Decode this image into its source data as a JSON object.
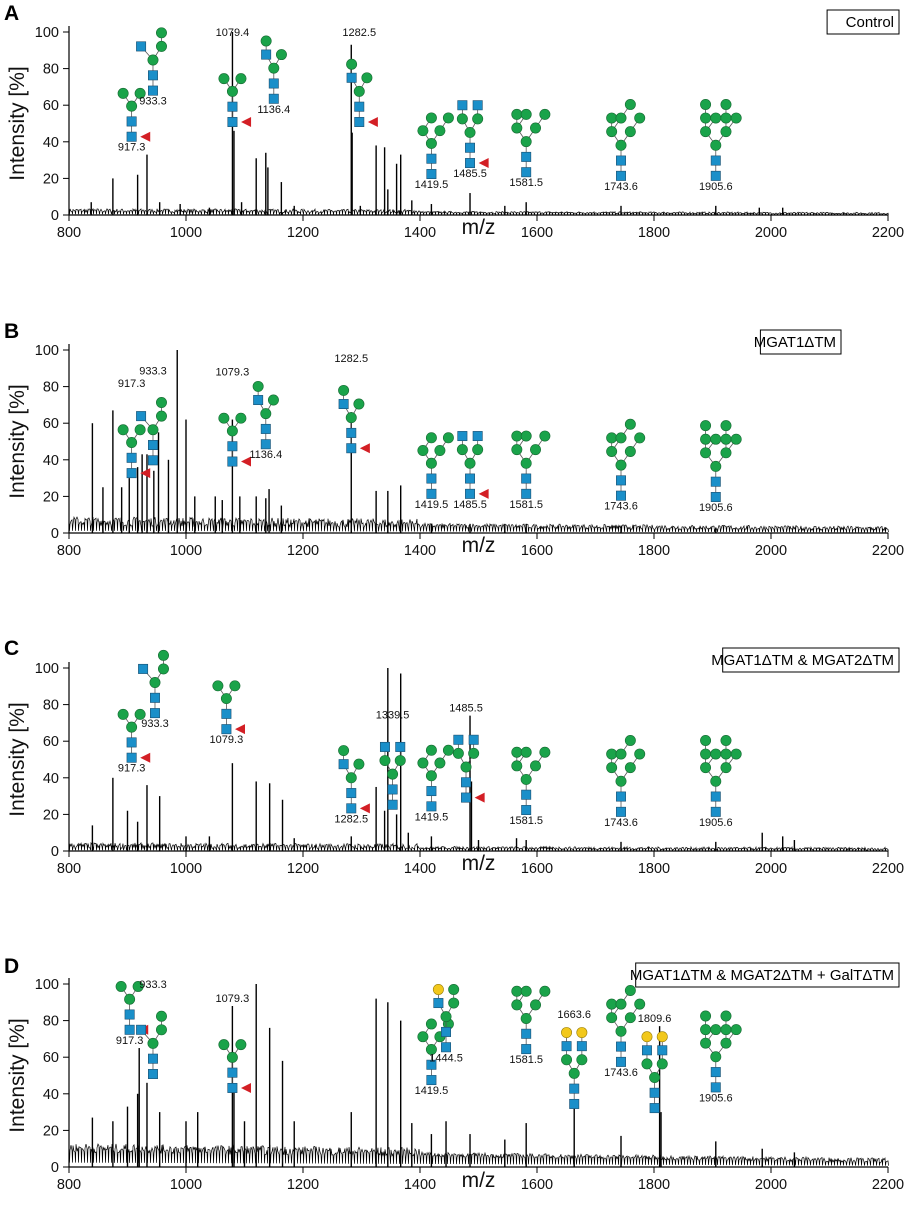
{
  "figure": {
    "xlabel": "m/z",
    "ylabel": "Intensity [%]"
  },
  "chart_data": [
    {
      "panel": "A",
      "condition": "Control",
      "type": "line",
      "xlabel": "m/z",
      "ylabel": "Intensity [%]",
      "xlim": [
        800,
        2200
      ],
      "ylim": [
        0,
        100
      ],
      "xticks": [
        800,
        1000,
        1200,
        1400,
        1600,
        1800,
        2000,
        2200
      ],
      "yticks": [
        0,
        20,
        40,
        60,
        80,
        100
      ],
      "baseline": 1.5,
      "noise": 2,
      "peaks": [
        [
          838,
          7
        ],
        [
          875,
          20
        ],
        [
          917.3,
          22
        ],
        [
          933.3,
          33
        ],
        [
          955,
          7
        ],
        [
          990,
          6
        ],
        [
          1040,
          4
        ],
        [
          1079.4,
          100
        ],
        [
          1082,
          46
        ],
        [
          1095,
          7
        ],
        [
          1120,
          31
        ],
        [
          1136.4,
          34
        ],
        [
          1140,
          26
        ],
        [
          1163,
          18
        ],
        [
          1185,
          5
        ],
        [
          1282.5,
          93
        ],
        [
          1284,
          45
        ],
        [
          1298,
          5
        ],
        [
          1325,
          38
        ],
        [
          1339.5,
          37
        ],
        [
          1345,
          14
        ],
        [
          1360,
          28
        ],
        [
          1367,
          33
        ],
        [
          1386,
          8
        ],
        [
          1419.5,
          6
        ],
        [
          1485.5,
          12
        ],
        [
          1545,
          5
        ],
        [
          1581.5,
          7
        ],
        [
          1743.6,
          5
        ],
        [
          1905.6,
          5
        ],
        [
          1980,
          4
        ],
        [
          2020,
          4
        ]
      ],
      "annotations": [
        {
          "mz": 917.3,
          "label": "917.3"
        },
        {
          "mz": 933.3,
          "label": "933.3"
        },
        {
          "mz": 1079.4,
          "label": "1079.4"
        },
        {
          "mz": 1136.4,
          "label": "1136.4"
        },
        {
          "mz": 1282.5,
          "label": "1282.5"
        },
        {
          "mz": 1419.5,
          "label": "1419.5"
        },
        {
          "mz": 1485.5,
          "label": "1485.5"
        },
        {
          "mz": 1581.5,
          "label": "1581.5"
        },
        {
          "mz": 1743.6,
          "label": "1743.6"
        },
        {
          "mz": 1905.6,
          "label": "1905.6"
        }
      ]
    },
    {
      "panel": "B",
      "condition": "MGAT1ΔTM",
      "type": "line",
      "xlabel": "m/z",
      "ylabel": "Intensity [%]",
      "xlim": [
        800,
        2200
      ],
      "ylim": [
        0,
        100
      ],
      "xticks": [
        800,
        1000,
        1200,
        1400,
        1600,
        1800,
        2000,
        2200
      ],
      "yticks": [
        0,
        20,
        40,
        60,
        80,
        100
      ],
      "baseline": 4,
      "noise": 5,
      "peaks": [
        [
          840,
          60
        ],
        [
          858,
          25
        ],
        [
          875,
          67
        ],
        [
          890,
          25
        ],
        [
          903,
          30
        ],
        [
          917.3,
          36
        ],
        [
          925,
          43
        ],
        [
          933.3,
          43
        ],
        [
          945,
          34
        ],
        [
          953,
          55
        ],
        [
          970,
          40
        ],
        [
          985,
          100
        ],
        [
          1000,
          62
        ],
        [
          1015,
          20
        ],
        [
          1050,
          20
        ],
        [
          1062,
          18
        ],
        [
          1079.3,
          62
        ],
        [
          1092,
          20
        ],
        [
          1120,
          20
        ],
        [
          1136.4,
          19
        ],
        [
          1142,
          24
        ],
        [
          1163,
          15
        ],
        [
          1282.5,
          66
        ],
        [
          1325,
          23
        ],
        [
          1345,
          23
        ],
        [
          1367,
          26
        ],
        [
          1419.5,
          5
        ],
        [
          1485.5,
          5
        ],
        [
          1545,
          5
        ],
        [
          1581.5,
          5
        ],
        [
          1743.6,
          4
        ],
        [
          1905.6,
          3
        ]
      ],
      "annotations": [
        {
          "mz": 917.3,
          "label": "917.3"
        },
        {
          "mz": 933.3,
          "label": "933.3"
        },
        {
          "mz": 1079.3,
          "label": "1079.3"
        },
        {
          "mz": 1136.4,
          "label": "1136.4"
        },
        {
          "mz": 1282.5,
          "label": "1282.5"
        },
        {
          "mz": 1419.5,
          "label": "1419.5"
        },
        {
          "mz": 1485.5,
          "label": "1485.5"
        },
        {
          "mz": 1581.5,
          "label": "1581.5"
        },
        {
          "mz": 1743.6,
          "label": "1743.6"
        },
        {
          "mz": 1905.6,
          "label": "1905.6"
        }
      ]
    },
    {
      "panel": "C",
      "condition": "MGAT1ΔTM & MGAT2ΔTM",
      "type": "line",
      "xlabel": "m/z",
      "ylabel": "Intensity [%]",
      "xlim": [
        800,
        2200
      ],
      "ylim": [
        0,
        100
      ],
      "xticks": [
        800,
        1000,
        1200,
        1400,
        1600,
        1800,
        2000,
        2200
      ],
      "yticks": [
        0,
        20,
        40,
        60,
        80,
        100
      ],
      "baseline": 1.5,
      "noise": 3,
      "peaks": [
        [
          840,
          14
        ],
        [
          875,
          40
        ],
        [
          900,
          22
        ],
        [
          917.3,
          16
        ],
        [
          933.3,
          36
        ],
        [
          955,
          30
        ],
        [
          1000,
          8
        ],
        [
          1040,
          8
        ],
        [
          1079.3,
          48
        ],
        [
          1120,
          38
        ],
        [
          1143,
          37
        ],
        [
          1165,
          28
        ],
        [
          1185,
          7
        ],
        [
          1282.5,
          8
        ],
        [
          1325,
          35
        ],
        [
          1339.5,
          22
        ],
        [
          1345,
          100
        ],
        [
          1360,
          20
        ],
        [
          1367,
          97
        ],
        [
          1380,
          10
        ],
        [
          1419.5,
          8
        ],
        [
          1485.5,
          74
        ],
        [
          1488,
          38
        ],
        [
          1500,
          6
        ],
        [
          1565,
          7
        ],
        [
          1581.5,
          6
        ],
        [
          1743.6,
          5
        ],
        [
          1905.6,
          5
        ],
        [
          1985,
          10
        ],
        [
          2020,
          8
        ],
        [
          2040,
          6
        ]
      ],
      "annotations": [
        {
          "mz": 917.3,
          "label": "917.3"
        },
        {
          "mz": 933.3,
          "label": "933.3"
        },
        {
          "mz": 1079.3,
          "label": "1079.3"
        },
        {
          "mz": 1282.5,
          "label": "1282.5"
        },
        {
          "mz": 1339.5,
          "label": "1339.5"
        },
        {
          "mz": 1419.5,
          "label": "1419.5"
        },
        {
          "mz": 1485.5,
          "label": "1485.5"
        },
        {
          "mz": 1581.5,
          "label": "1581.5"
        },
        {
          "mz": 1743.6,
          "label": "1743.6"
        },
        {
          "mz": 1905.6,
          "label": "1905.6"
        }
      ]
    },
    {
      "panel": "D",
      "condition": "MGAT1ΔTM & MGAT2ΔTM + GalTΔTM",
      "type": "line",
      "xlabel": "m/z",
      "ylabel": "Intensity [%]",
      "xlim": [
        800,
        2200
      ],
      "ylim": [
        0,
        100
      ],
      "xticks": [
        800,
        1000,
        1200,
        1400,
        1600,
        1800,
        2000,
        2200
      ],
      "yticks": [
        0,
        20,
        40,
        60,
        80,
        100
      ],
      "baseline": 8,
      "noise": 5,
      "peaks": [
        [
          840,
          27
        ],
        [
          875,
          25
        ],
        [
          900,
          33
        ],
        [
          917.3,
          40
        ],
        [
          920,
          65
        ],
        [
          933.3,
          46
        ],
        [
          955,
          30
        ],
        [
          1000,
          25
        ],
        [
          1020,
          30
        ],
        [
          1079.3,
          88
        ],
        [
          1082,
          45
        ],
        [
          1100,
          25
        ],
        [
          1120,
          100
        ],
        [
          1143,
          76
        ],
        [
          1165,
          58
        ],
        [
          1185,
          25
        ],
        [
          1282.5,
          30
        ],
        [
          1325,
          92
        ],
        [
          1345,
          90
        ],
        [
          1367,
          80
        ],
        [
          1386,
          24
        ],
        [
          1419.5,
          18
        ],
        [
          1444.5,
          25
        ],
        [
          1485.5,
          18
        ],
        [
          1545,
          15
        ],
        [
          1581.5,
          24
        ],
        [
          1663.6,
          35
        ],
        [
          1743.6,
          17
        ],
        [
          1809.6,
          77
        ],
        [
          1812,
          30
        ],
        [
          1905.6,
          14
        ],
        [
          1985,
          10
        ],
        [
          2040,
          8
        ]
      ],
      "annotations": [
        {
          "mz": 917.3,
          "label": "917.3"
        },
        {
          "mz": 933.3,
          "label": "933.3"
        },
        {
          "mz": 1079.3,
          "label": "1079.3"
        },
        {
          "mz": 1419.5,
          "label": "1419.5"
        },
        {
          "mz": 1444.5,
          "label": "1444.5"
        },
        {
          "mz": 1581.5,
          "label": "1581.5"
        },
        {
          "mz": 1663.6,
          "label": "1663.6"
        },
        {
          "mz": 1743.6,
          "label": "1743.6"
        },
        {
          "mz": 1809.6,
          "label": "1809.6"
        },
        {
          "mz": 1905.6,
          "label": "1905.6"
        }
      ]
    }
  ]
}
